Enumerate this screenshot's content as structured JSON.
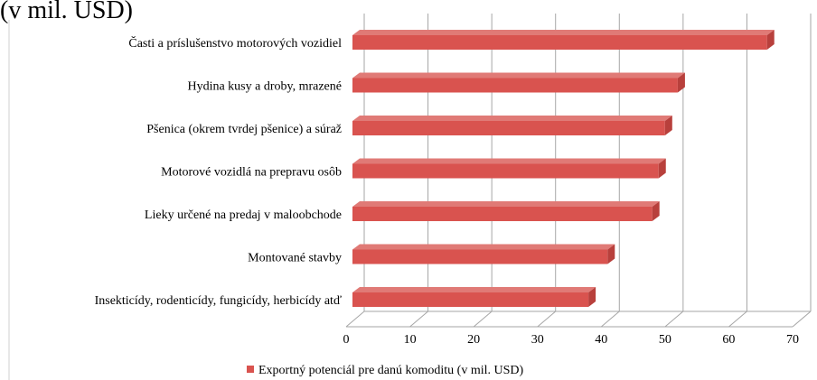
{
  "chart_data": {
    "type": "bar",
    "orientation": "horizontal",
    "title": "(v mil. USD)",
    "categories": [
      "Časti a príslušenstvo motorových vozidiel",
      "Hydina kusy a droby, mrazené",
      "Pšenica (okrem tvrdej pšenice) a súraž",
      "Motorové vozidlá na prepravu osôb",
      "Lieky určené na predaj v maloobchode",
      "Montované stavby",
      "Insekticídy, rodenticídy, fungicídy, herbicídy atď"
    ],
    "series": [
      {
        "name": "Exportný potenciál pre danú komoditu (v mil. USD)",
        "color": "#d9534f",
        "values": [
          65,
          51,
          49,
          48,
          47,
          40,
          37
        ]
      }
    ],
    "xlim": [
      0,
      70
    ],
    "xticks": [
      0,
      10,
      20,
      30,
      40,
      50,
      60,
      70
    ],
    "grid": true,
    "legend": "bottom"
  }
}
